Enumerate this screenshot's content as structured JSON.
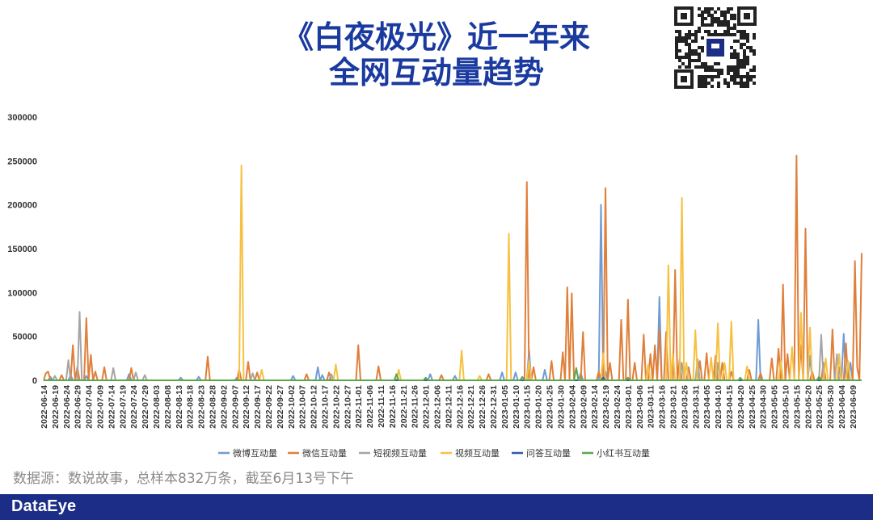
{
  "header": {
    "title_line1": "《白夜极光》近一年来",
    "title_line2": "全网互动量趋势"
  },
  "source_note": "数据源：数说故事，总样本832万条，截至6月13号下午",
  "brand": "DataEye",
  "colors": {
    "title": "#1a3aa0",
    "footer_bg": "#1b2d86"
  },
  "chart_data": {
    "type": "line",
    "title": "",
    "xlabel": "",
    "ylabel": "",
    "ylim": [
      0,
      300000
    ],
    "yticks": [
      "0",
      "50000",
      "100000",
      "150000",
      "200000",
      "250000",
      "300000"
    ],
    "x_start": "2022-06-14",
    "x_end": "2023-06-13",
    "x_tick_labels": [
      "2022-06-14",
      "2022-06-19",
      "2022-06-24",
      "2022-06-29",
      "2022-07-04",
      "2022-07-09",
      "2022-07-14",
      "2022-07-19",
      "2022-07-24",
      "2022-07-29",
      "2022-08-03",
      "2022-08-08",
      "2022-08-13",
      "2022-08-18",
      "2022-08-23",
      "2022-08-28",
      "2022-09-02",
      "2022-09-07",
      "2022-09-12",
      "2022-09-17",
      "2022-09-22",
      "2022-09-27",
      "2022-10-02",
      "2022-10-07",
      "2022-10-12",
      "2022-10-17",
      "2022-10-22",
      "2022-10-27",
      "2022-11-01",
      "2022-11-06",
      "2022-11-11",
      "2022-11-16",
      "2022-11-21",
      "2022-11-26",
      "2022-12-01",
      "2022-12-06",
      "2022-12-11",
      "2022-12-16",
      "2022-12-21",
      "2022-12-26",
      "2022-12-31",
      "2023-01-05",
      "2023-01-10",
      "2023-01-15",
      "2023-01-20",
      "2023-01-25",
      "2023-01-30",
      "2023-02-04",
      "2023-02-09",
      "2023-02-14",
      "2023-02-19",
      "2023-02-24",
      "2023-03-01",
      "2023-03-06",
      "2023-03-11",
      "2023-03-16",
      "2023-03-21",
      "2023-03-26",
      "2023-03-31",
      "2023-04-05",
      "2023-04-10",
      "2023-04-15",
      "2023-04-20",
      "2023-04-25",
      "2023-04-30",
      "2023-05-05",
      "2023-05-10",
      "2023-05-15",
      "2023-05-20",
      "2023-05-25",
      "2023-05-30",
      "2023-06-04",
      "2023-06-09"
    ],
    "grid": false,
    "legend_position": "bottom",
    "series": [
      {
        "name": "微博互动量",
        "color": "#6f9bd6",
        "points": [
          [
            "2022-06-17",
            4000
          ],
          [
            "2022-06-26",
            6000
          ],
          [
            "2022-07-03",
            5000
          ],
          [
            "2022-07-22",
            7000
          ],
          [
            "2022-08-14",
            3000
          ],
          [
            "2022-08-22",
            4000
          ],
          [
            "2022-09-08",
            3000
          ],
          [
            "2022-10-03",
            5000
          ],
          [
            "2022-10-14",
            15000
          ],
          [
            "2022-10-16",
            6000
          ],
          [
            "2022-12-03",
            7000
          ],
          [
            "2022-12-14",
            5000
          ],
          [
            "2023-01-04",
            9000
          ],
          [
            "2023-01-10",
            9000
          ],
          [
            "2023-01-16",
            34000
          ],
          [
            "2023-01-23",
            12000
          ],
          [
            "2023-02-08",
            8000
          ],
          [
            "2023-02-17",
            200000
          ],
          [
            "2023-02-19",
            10000
          ],
          [
            "2023-03-15",
            95000
          ],
          [
            "2023-03-28",
            15000
          ],
          [
            "2023-04-09",
            10000
          ],
          [
            "2023-04-28",
            69000
          ],
          [
            "2023-05-21",
            28000
          ],
          [
            "2023-06-05",
            53000
          ],
          [
            "2023-06-08",
            20000
          ]
        ]
      },
      {
        "name": "微信互动量",
        "color": "#e07f3a",
        "points": [
          [
            "2022-06-15",
            8000
          ],
          [
            "2022-06-16",
            10000
          ],
          [
            "2022-06-22",
            6000
          ],
          [
            "2022-06-27",
            40000
          ],
          [
            "2022-06-29",
            15000
          ],
          [
            "2022-07-03",
            71000
          ],
          [
            "2022-07-05",
            29000
          ],
          [
            "2022-07-07",
            10000
          ],
          [
            "2022-07-11",
            15000
          ],
          [
            "2022-07-23",
            14000
          ],
          [
            "2022-08-26",
            27000
          ],
          [
            "2022-09-09",
            12000
          ],
          [
            "2022-09-13",
            21000
          ],
          [
            "2022-09-17",
            9000
          ],
          [
            "2022-10-09",
            7000
          ],
          [
            "2022-10-19",
            9000
          ],
          [
            "2022-11-01",
            40000
          ],
          [
            "2022-11-10",
            16000
          ],
          [
            "2022-12-08",
            6000
          ],
          [
            "2022-12-29",
            7000
          ],
          [
            "2023-01-15",
            226000
          ],
          [
            "2023-01-18",
            15000
          ],
          [
            "2023-01-26",
            22000
          ],
          [
            "2023-01-31",
            32000
          ],
          [
            "2023-02-02",
            106000
          ],
          [
            "2023-02-04",
            99000
          ],
          [
            "2023-02-09",
            55000
          ],
          [
            "2023-02-16",
            10000
          ],
          [
            "2023-02-19",
            219000
          ],
          [
            "2023-02-21",
            20000
          ],
          [
            "2023-02-26",
            69000
          ],
          [
            "2023-03-01",
            92000
          ],
          [
            "2023-03-04",
            20000
          ],
          [
            "2023-03-08",
            52000
          ],
          [
            "2023-03-11",
            30000
          ],
          [
            "2023-03-13",
            40000
          ],
          [
            "2023-03-15",
            58000
          ],
          [
            "2023-03-18",
            55000
          ],
          [
            "2023-03-22",
            126000
          ],
          [
            "2023-03-24",
            24000
          ],
          [
            "2023-03-28",
            14000
          ],
          [
            "2023-04-02",
            22000
          ],
          [
            "2023-04-05",
            31000
          ],
          [
            "2023-04-09",
            28000
          ],
          [
            "2023-04-12",
            20000
          ],
          [
            "2023-04-16",
            10000
          ],
          [
            "2023-04-24",
            12000
          ],
          [
            "2023-04-29",
            8000
          ],
          [
            "2023-05-04",
            25000
          ],
          [
            "2023-05-07",
            36000
          ],
          [
            "2023-05-09",
            109000
          ],
          [
            "2023-05-11",
            30000
          ],
          [
            "2023-05-15",
            256000
          ],
          [
            "2023-05-17",
            40000
          ],
          [
            "2023-05-19",
            173000
          ],
          [
            "2023-05-22",
            10000
          ],
          [
            "2023-05-27",
            20000
          ],
          [
            "2023-05-31",
            58000
          ],
          [
            "2023-06-03",
            15000
          ],
          [
            "2023-06-06",
            42000
          ],
          [
            "2023-06-10",
            136000
          ],
          [
            "2023-06-11",
            15000
          ],
          [
            "2023-06-13",
            145000
          ]
        ]
      },
      {
        "name": "短视频互动量",
        "color": "#a5a5a5",
        "points": [
          [
            "2022-06-19",
            5000
          ],
          [
            "2022-06-25",
            23000
          ],
          [
            "2022-06-30",
            78000
          ],
          [
            "2022-07-15",
            14000
          ],
          [
            "2022-07-25",
            9000
          ],
          [
            "2022-07-29",
            6000
          ],
          [
            "2022-09-15",
            8000
          ],
          [
            "2022-10-20",
            7000
          ],
          [
            "2023-01-16",
            26000
          ],
          [
            "2023-03-25",
            20000
          ],
          [
            "2023-04-01",
            24000
          ],
          [
            "2023-04-10",
            20000
          ],
          [
            "2023-05-26",
            52000
          ],
          [
            "2023-06-02",
            30000
          ]
        ]
      },
      {
        "name": "视频互动量",
        "color": "#f6c142",
        "points": [
          [
            "2022-09-10",
            245000
          ],
          [
            "2022-09-19",
            12000
          ],
          [
            "2022-10-22",
            18000
          ],
          [
            "2022-11-19",
            12000
          ],
          [
            "2022-12-17",
            34000
          ],
          [
            "2022-12-25",
            5000
          ],
          [
            "2023-01-07",
            167000
          ],
          [
            "2023-01-16",
            22000
          ],
          [
            "2023-02-18",
            31000
          ],
          [
            "2023-03-10",
            18000
          ],
          [
            "2023-03-19",
            131000
          ],
          [
            "2023-03-21",
            30000
          ],
          [
            "2023-03-25",
            208000
          ],
          [
            "2023-03-27",
            20000
          ],
          [
            "2023-03-31",
            57000
          ],
          [
            "2023-04-07",
            26000
          ],
          [
            "2023-04-10",
            65000
          ],
          [
            "2023-04-13",
            20000
          ],
          [
            "2023-04-16",
            67000
          ],
          [
            "2023-04-23",
            16000
          ],
          [
            "2023-05-08",
            22000
          ],
          [
            "2023-05-13",
            38000
          ],
          [
            "2023-05-17",
            77000
          ],
          [
            "2023-05-21",
            60000
          ],
          [
            "2023-05-28",
            25000
          ],
          [
            "2023-06-03",
            30000
          ],
          [
            "2023-06-07",
            22000
          ]
        ]
      },
      {
        "name": "问答互动量",
        "color": "#2d5aa6",
        "points": [
          [
            "2023-02-18",
            3000
          ]
        ]
      },
      {
        "name": "小红书互动量",
        "color": "#5aa846",
        "points": [
          [
            "2022-11-18",
            7000
          ],
          [
            "2022-12-01",
            3000
          ],
          [
            "2023-01-13",
            4000
          ],
          [
            "2023-02-06",
            14000
          ],
          [
            "2023-03-01",
            3000
          ],
          [
            "2023-04-20",
            3000
          ],
          [
            "2023-05-25",
            4000
          ]
        ]
      }
    ]
  }
}
